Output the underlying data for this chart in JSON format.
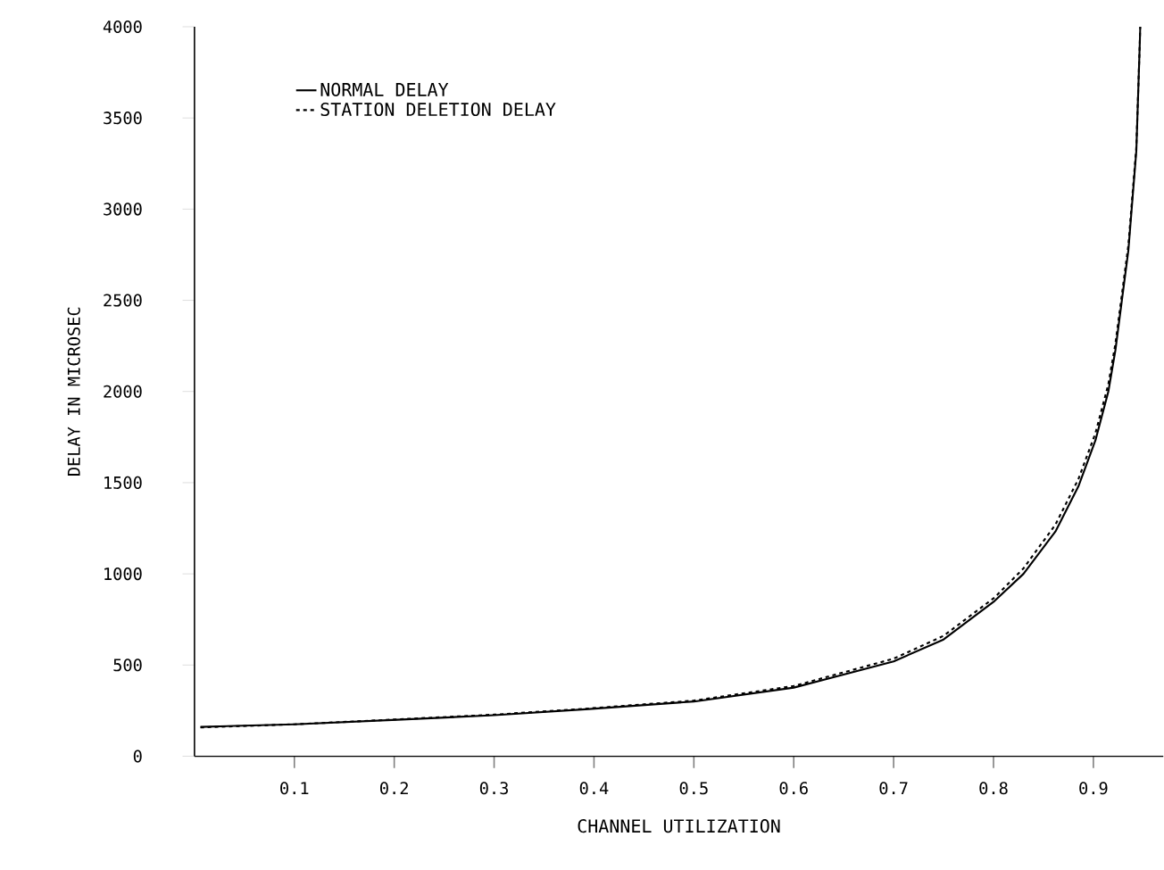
{
  "chart_data": {
    "type": "line",
    "xlabel": "CHANNEL UTILIZATION",
    "ylabel": "DELAY IN MICROSEC",
    "xlim": [
      0,
      0.97
    ],
    "ylim": [
      0,
      4000
    ],
    "xticks": [
      0.1,
      0.2,
      0.3,
      0.4,
      0.5,
      0.6,
      0.7,
      0.8,
      0.9
    ],
    "yticks": [
      0,
      500,
      1000,
      1500,
      2000,
      2500,
      3000,
      3500,
      4000
    ],
    "legend": "top left",
    "grid": false,
    "series": [
      {
        "name": "NORMAL DELAY",
        "color": "#000000",
        "line_style": "solid",
        "x": [
          0.006,
          0.1,
          0.203,
          0.3,
          0.395,
          0.5,
          0.6,
          0.7,
          0.75,
          0.801,
          0.83,
          0.862,
          0.885,
          0.902,
          0.915,
          0.922,
          0.935,
          0.943,
          0.947
        ],
        "values": [
          161,
          175,
          200,
          225,
          259,
          300,
          376,
          520,
          640,
          851,
          1000,
          1232,
          1480,
          1731,
          2000,
          2225,
          2772,
          3320,
          4000
        ]
      },
      {
        "name": "STATION DELETION DELAY",
        "color": "#000000",
        "line_style": "dashed",
        "x": [
          0.006,
          0.1,
          0.203,
          0.3,
          0.395,
          0.5,
          0.6,
          0.7,
          0.75,
          0.801,
          0.83,
          0.862,
          0.885,
          0.902,
          0.915,
          0.922,
          0.935,
          0.943,
          0.947
        ],
        "values": [
          158,
          175,
          202,
          228,
          262,
          305,
          385,
          535,
          660,
          870,
          1030,
          1270,
          1520,
          1770,
          2040,
          2260,
          2800,
          3340,
          4000
        ]
      }
    ]
  }
}
